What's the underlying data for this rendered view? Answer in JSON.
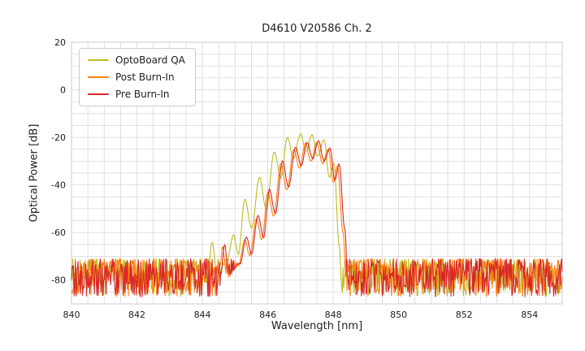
{
  "chart_data": {
    "type": "line",
    "title": "D4610 V20586 Ch. 2",
    "xlabel": "Wavelength [nm]",
    "ylabel": "Optical Power [dB]",
    "xlim": [
      840,
      855
    ],
    "ylim": [
      -90,
      20
    ],
    "xticks": [
      840,
      842,
      844,
      846,
      848,
      850,
      852,
      854
    ],
    "yticks": [
      -80,
      -60,
      -40,
      -20,
      0,
      20
    ],
    "grid": true,
    "grid_minor_x_step_nm": 0.5,
    "grid_minor_y_step_db": 5,
    "legend_position": "upper-left",
    "noise_floor": {
      "mean": -78,
      "min": -87,
      "max": -71
    },
    "series": [
      {
        "name": "OptoBoard QA",
        "color": "#bcbd22",
        "seed": 1,
        "peak_power_db": -18.5,
        "envelope": [
          [
            844.15,
            -80
          ],
          [
            844.3,
            -64
          ],
          [
            844.45,
            -78
          ],
          [
            844.75,
            -72
          ],
          [
            844.95,
            -61
          ],
          [
            845.1,
            -69
          ],
          [
            845.3,
            -46
          ],
          [
            845.5,
            -58
          ],
          [
            845.75,
            -37
          ],
          [
            845.95,
            -50
          ],
          [
            846.2,
            -26
          ],
          [
            846.4,
            -37
          ],
          [
            846.6,
            -20
          ],
          [
            846.78,
            -29
          ],
          [
            847.0,
            -18.5
          ],
          [
            847.17,
            -26
          ],
          [
            847.35,
            -19
          ],
          [
            847.52,
            -28
          ],
          [
            847.72,
            -21
          ],
          [
            847.88,
            -37
          ],
          [
            848.02,
            -31
          ],
          [
            848.18,
            -65
          ],
          [
            848.28,
            -88
          ]
        ]
      },
      {
        "name": "Post Burn-In",
        "color": "#ff7f0e",
        "seed": 2,
        "peak_power_db": -22,
        "envelope": [
          [
            844.5,
            -80
          ],
          [
            844.62,
            -66
          ],
          [
            844.75,
            -79
          ],
          [
            845.1,
            -74
          ],
          [
            845.3,
            -63
          ],
          [
            845.45,
            -70
          ],
          [
            845.65,
            -54
          ],
          [
            845.82,
            -63
          ],
          [
            846.0,
            -43
          ],
          [
            846.18,
            -53
          ],
          [
            846.4,
            -31
          ],
          [
            846.58,
            -42
          ],
          [
            846.8,
            -25
          ],
          [
            846.97,
            -33
          ],
          [
            847.15,
            -22.5
          ],
          [
            847.32,
            -30
          ],
          [
            847.5,
            -22
          ],
          [
            847.67,
            -31
          ],
          [
            847.85,
            -25
          ],
          [
            848.0,
            -39
          ],
          [
            848.13,
            -32
          ],
          [
            848.3,
            -60
          ],
          [
            848.42,
            -88
          ]
        ]
      },
      {
        "name": "Pre Burn-In",
        "color": "#d62728",
        "seed": 3,
        "peak_power_db": -21.5,
        "envelope": [
          [
            844.55,
            -80
          ],
          [
            844.68,
            -65
          ],
          [
            844.8,
            -78
          ],
          [
            845.15,
            -73
          ],
          [
            845.35,
            -62
          ],
          [
            845.5,
            -69
          ],
          [
            845.7,
            -53
          ],
          [
            845.87,
            -62
          ],
          [
            846.05,
            -42
          ],
          [
            846.23,
            -52
          ],
          [
            846.45,
            -30
          ],
          [
            846.63,
            -41
          ],
          [
            846.85,
            -24
          ],
          [
            847.02,
            -32
          ],
          [
            847.2,
            -22
          ],
          [
            847.37,
            -29
          ],
          [
            847.55,
            -21.5
          ],
          [
            847.72,
            -30
          ],
          [
            847.9,
            -24.5
          ],
          [
            848.05,
            -38
          ],
          [
            848.18,
            -31
          ],
          [
            848.35,
            -58
          ],
          [
            848.47,
            -88
          ]
        ]
      }
    ]
  }
}
